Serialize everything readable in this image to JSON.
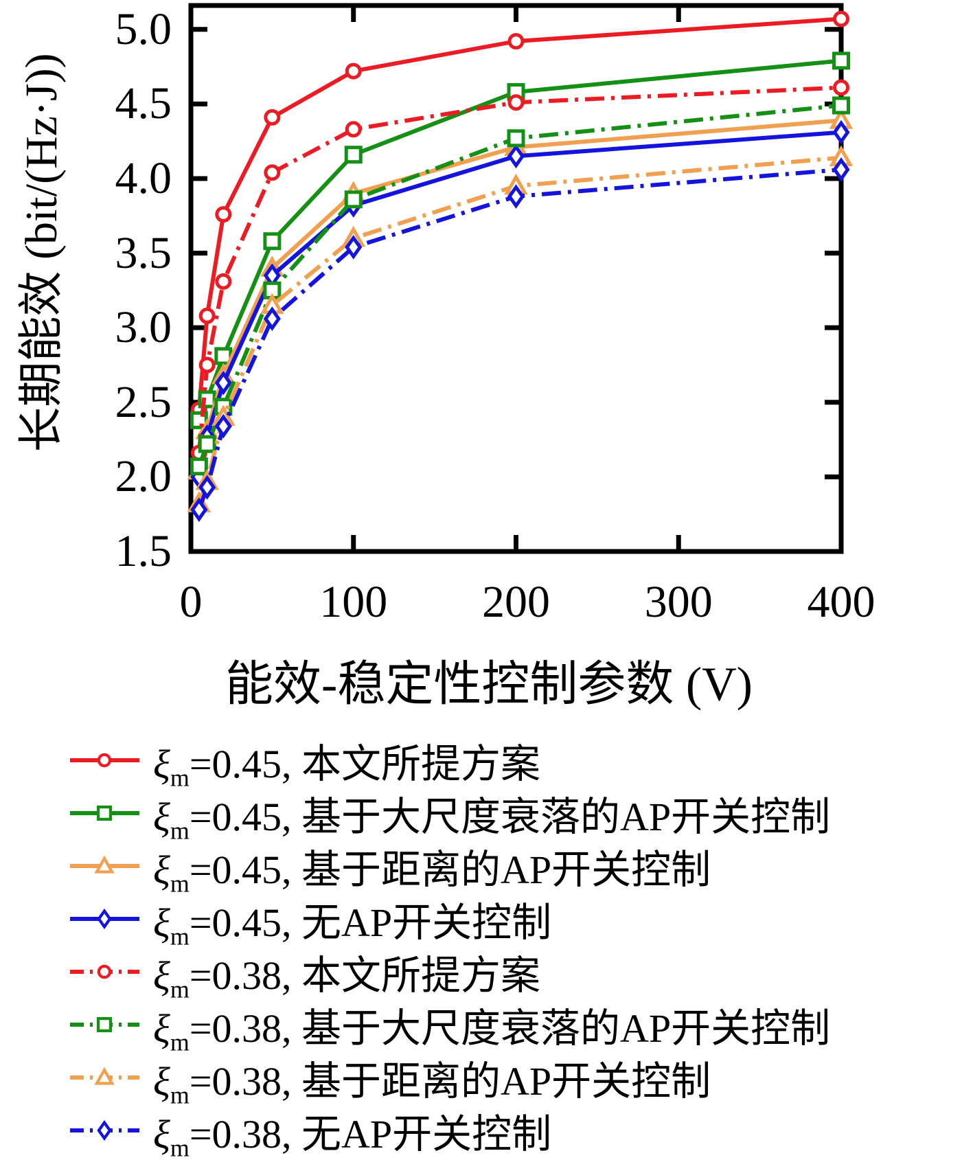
{
  "chart_data": {
    "type": "line",
    "title": "",
    "xlabel": "能效-稳定性控制参数 (V)",
    "ylabel": "长期能效 (bit/(Hz·J))",
    "xlim": [
      0,
      400
    ],
    "ylim": [
      1.5,
      5.16
    ],
    "grid": false,
    "legend_position": "below",
    "x_ticks": [
      0,
      100,
      200,
      300,
      400
    ],
    "x_tick_labels": [
      "0",
      "100",
      "200",
      "300",
      "400"
    ],
    "y_ticks": [
      1.5,
      2.0,
      2.5,
      3.0,
      3.5,
      4.0,
      4.5,
      5.0
    ],
    "y_tick_labels": [
      "1.5",
      "2.0",
      "2.5",
      "3.0",
      "3.5",
      "4.0",
      "4.5",
      "5.0"
    ],
    "x": [
      5,
      10,
      20,
      50,
      100,
      200,
      400
    ],
    "series": [
      {
        "name": "ξ_m=0.45, 本文所提方案",
        "color": "#EC1C24",
        "line": "solid",
        "marker": "circle",
        "values": [
          2.45,
          3.08,
          3.76,
          4.41,
          4.72,
          4.92,
          5.07
        ]
      },
      {
        "name": "ξ_m=0.45, 基于大尺度衰落的AP开关控制",
        "color": "#149014",
        "line": "solid",
        "marker": "square",
        "values": [
          2.38,
          2.52,
          2.81,
          3.58,
          4.16,
          4.58,
          4.79
        ]
      },
      {
        "name": "ξ_m=0.45, 基于距离的AP开关控制",
        "color": "#F0A04E",
        "line": "solid",
        "marker": "triangle",
        "values": [
          2.04,
          2.31,
          2.68,
          3.4,
          3.9,
          4.21,
          4.39
        ]
      },
      {
        "name": "ξ_m=0.45, 无AP开关控制",
        "color": "#1414DC",
        "line": "solid",
        "marker": "diamond",
        "values": [
          2.0,
          2.27,
          2.63,
          3.35,
          3.82,
          4.15,
          4.31
        ]
      },
      {
        "name": "ξ_m=0.38, 本文所提方案",
        "color": "#EC1C24",
        "line": "dashdot",
        "marker": "circle",
        "values": [
          2.16,
          2.75,
          3.31,
          4.04,
          4.33,
          4.51,
          4.61
        ]
      },
      {
        "name": "ξ_m=0.38, 基于大尺度衰落的AP开关控制",
        "color": "#149014",
        "line": "dashdot",
        "marker": "square",
        "values": [
          2.07,
          2.22,
          2.47,
          3.25,
          3.86,
          4.27,
          4.49
        ]
      },
      {
        "name": "ξ_m=0.38, 基于距离的AP开关控制",
        "color": "#F0A04E",
        "line": "dashdot",
        "marker": "triangle",
        "values": [
          1.82,
          1.97,
          2.4,
          3.15,
          3.6,
          3.95,
          4.14
        ]
      },
      {
        "name": "ξ_m=0.38, 无AP开关控制",
        "color": "#1414DC",
        "line": "dashdot",
        "marker": "diamond",
        "values": [
          1.78,
          1.93,
          2.34,
          3.06,
          3.54,
          3.88,
          4.06
        ]
      }
    ]
  },
  "legend": {
    "items": [
      {
        "symbol": "ξ",
        "subscript": "m",
        "rest": "=0.45, 本文所提方案"
      },
      {
        "symbol": "ξ",
        "subscript": "m",
        "rest": "=0.45, 基于大尺度衰落的AP开关控制"
      },
      {
        "symbol": "ξ",
        "subscript": "m",
        "rest": "=0.45, 基于距离的AP开关控制"
      },
      {
        "symbol": "ξ",
        "subscript": "m",
        "rest": "=0.45, 无AP开关控制"
      },
      {
        "symbol": "ξ",
        "subscript": "m",
        "rest": "=0.38, 本文所提方案"
      },
      {
        "symbol": "ξ",
        "subscript": "m",
        "rest": "=0.38, 基于大尺度衰落的AP开关控制"
      },
      {
        "symbol": "ξ",
        "subscript": "m",
        "rest": "=0.38, 基于距离的AP开关控制"
      },
      {
        "symbol": "ξ",
        "subscript": "m",
        "rest": "=0.38, 无AP开关控制"
      }
    ]
  }
}
